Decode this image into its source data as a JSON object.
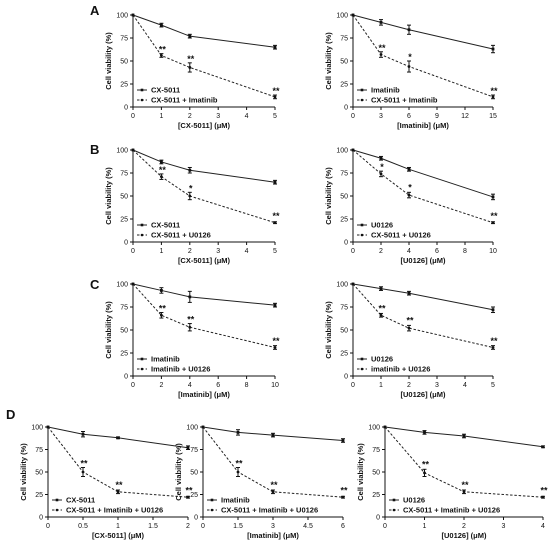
{
  "panels": [
    "A",
    "B",
    "C",
    "D"
  ],
  "chart_data": [
    {
      "type": "line",
      "panel": "A",
      "col": 0,
      "ylabel": "Cell viability (%)",
      "xlabel": "[CX-5011] (μM)",
      "xticks": [
        "0",
        "1",
        "2",
        "3",
        "4",
        "5"
      ],
      "yticks": [
        "0",
        "25",
        "50",
        "75",
        "100"
      ],
      "xlim": [
        0,
        5
      ],
      "ylim": [
        0,
        100
      ],
      "series": [
        {
          "name": "CX-5011",
          "style": "solid",
          "x": [
            0,
            1,
            2,
            5
          ],
          "y": [
            100,
            89,
            77,
            65
          ],
          "err": [
            0,
            2,
            2,
            2
          ]
        },
        {
          "name": "CX-5011 + Imatinib",
          "style": "dashed",
          "x": [
            0,
            1,
            2,
            5
          ],
          "y": [
            100,
            56,
            43,
            11
          ],
          "err": [
            0,
            2,
            5,
            2
          ]
        }
      ],
      "annotations": [
        {
          "x": 1,
          "y": 59,
          "text": "**"
        },
        {
          "x": 2,
          "y": 49,
          "text": "**"
        },
        {
          "x": 5,
          "y": 14,
          "text": "**"
        }
      ]
    },
    {
      "type": "line",
      "panel": "A",
      "col": 1,
      "ylabel": "Cell viability (%)",
      "xlabel": "[Imatinib] (μM)",
      "xticks": [
        "0",
        "3",
        "6",
        "9",
        "12",
        "15"
      ],
      "yticks": [
        "0",
        "25",
        "50",
        "75",
        "100"
      ],
      "xlim": [
        0,
        15
      ],
      "ylim": [
        0,
        100
      ],
      "series": [
        {
          "name": "Imatinib",
          "style": "solid",
          "x": [
            0,
            3,
            6,
            15
          ],
          "y": [
            100,
            92,
            84,
            63
          ],
          "err": [
            0,
            3,
            5,
            4
          ]
        },
        {
          "name": "CX-5011 + Imatinib",
          "style": "dashed",
          "x": [
            0,
            3,
            6,
            15
          ],
          "y": [
            100,
            57,
            44,
            11
          ],
          "err": [
            0,
            3,
            6,
            2
          ]
        }
      ],
      "annotations": [
        {
          "x": 3,
          "y": 61,
          "text": "**"
        },
        {
          "x": 6,
          "y": 51,
          "text": "*"
        },
        {
          "x": 15,
          "y": 14,
          "text": "**"
        }
      ]
    },
    {
      "type": "line",
      "panel": "B",
      "col": 0,
      "ylabel": "Cell viability (%)",
      "xlabel": "[CX-5011] (μM)",
      "xticks": [
        "0",
        "1",
        "2",
        "3",
        "4",
        "5"
      ],
      "yticks": [
        "0",
        "25",
        "50",
        "75",
        "100"
      ],
      "xlim": [
        0,
        5
      ],
      "ylim": [
        0,
        100
      ],
      "series": [
        {
          "name": "CX-5011",
          "style": "solid",
          "x": [
            0,
            1,
            2,
            5
          ],
          "y": [
            100,
            87,
            78,
            65
          ],
          "err": [
            0,
            2,
            3,
            2
          ]
        },
        {
          "name": "CX-5011 + U0126",
          "style": "dashed",
          "x": [
            0,
            1,
            2,
            5
          ],
          "y": [
            100,
            71,
            50,
            21
          ],
          "err": [
            0,
            3,
            4,
            1
          ]
        }
      ],
      "annotations": [
        {
          "x": 1,
          "y": 75,
          "text": "**"
        },
        {
          "x": 2,
          "y": 55,
          "text": "*"
        },
        {
          "x": 5,
          "y": 25,
          "text": "**"
        }
      ]
    },
    {
      "type": "line",
      "panel": "B",
      "col": 1,
      "ylabel": "Cell viability (%)",
      "xlabel": "[U0126] (μM)",
      "xticks": [
        "0",
        "2",
        "4",
        "6",
        "8",
        "10"
      ],
      "yticks": [
        "0",
        "25",
        "50",
        "75",
        "100"
      ],
      "xlim": [
        0,
        10
      ],
      "ylim": [
        0,
        100
      ],
      "series": [
        {
          "name": "U0126",
          "style": "solid",
          "x": [
            0,
            2,
            4,
            10
          ],
          "y": [
            100,
            91,
            79,
            49
          ],
          "err": [
            0,
            2,
            2,
            3
          ]
        },
        {
          "name": "CX-5011 + U0126",
          "style": "dashed",
          "x": [
            0,
            2,
            4,
            10
          ],
          "y": [
            100,
            74,
            51,
            21
          ],
          "err": [
            0,
            3,
            3,
            1
          ]
        }
      ],
      "annotations": [
        {
          "x": 2,
          "y": 78,
          "text": "*"
        },
        {
          "x": 4,
          "y": 56,
          "text": "*"
        },
        {
          "x": 10,
          "y": 25,
          "text": "**"
        }
      ]
    },
    {
      "type": "line",
      "panel": "C",
      "col": 0,
      "ylabel": "Cell viability (%)",
      "xlabel": "[Imatinib] (μM)",
      "xticks": [
        "0",
        "2",
        "4",
        "6",
        "8",
        "10"
      ],
      "yticks": [
        "0",
        "25",
        "50",
        "75",
        "100"
      ],
      "xlim": [
        0,
        10
      ],
      "ylim": [
        0,
        100
      ],
      "series": [
        {
          "name": "Imatinib",
          "style": "solid",
          "x": [
            0,
            2,
            4,
            10
          ],
          "y": [
            100,
            93,
            86,
            77
          ],
          "err": [
            0,
            3,
            6,
            2
          ]
        },
        {
          "name": "Imatinib + U0126",
          "style": "dashed",
          "x": [
            0,
            2,
            4,
            10
          ],
          "y": [
            100,
            66,
            53,
            31
          ],
          "err": [
            0,
            3,
            4,
            2
          ]
        }
      ],
      "annotations": [
        {
          "x": 2,
          "y": 70,
          "text": "**"
        },
        {
          "x": 4,
          "y": 58,
          "text": "**"
        },
        {
          "x": 10,
          "y": 35,
          "text": "**"
        }
      ]
    },
    {
      "type": "line",
      "panel": "C",
      "col": 1,
      "ylabel": "Cell viability (%)",
      "xlabel": "[U0126] (μM)",
      "xticks": [
        "0",
        "1",
        "2",
        "3",
        "4",
        "5"
      ],
      "yticks": [
        "0",
        "25",
        "50",
        "75",
        "100"
      ],
      "xlim": [
        0,
        5
      ],
      "ylim": [
        0,
        100
      ],
      "series": [
        {
          "name": "U0126",
          "style": "solid",
          "x": [
            0,
            1,
            2,
            5
          ],
          "y": [
            100,
            95,
            90,
            72
          ],
          "err": [
            0,
            2,
            2,
            3
          ]
        },
        {
          "name": "imatinib + U0126",
          "style": "dashed",
          "x": [
            0,
            1,
            2,
            5
          ],
          "y": [
            100,
            66,
            52,
            31
          ],
          "err": [
            0,
            2,
            3,
            2
          ]
        }
      ],
      "annotations": [
        {
          "x": 1,
          "y": 70,
          "text": "**"
        },
        {
          "x": 2,
          "y": 57,
          "text": "**"
        },
        {
          "x": 5,
          "y": 35,
          "text": "**"
        }
      ]
    },
    {
      "type": "line",
      "panel": "D",
      "col": 0,
      "ylabel": "Cell viability (%)",
      "xlabel": "[CX-5011] (μM)",
      "xticks": [
        "0",
        "0.5",
        "1",
        "1.5",
        "2"
      ],
      "yticks": [
        "0",
        "25",
        "50",
        "75",
        "100"
      ],
      "xlim": [
        0,
        2
      ],
      "ylim": [
        0,
        100
      ],
      "series": [
        {
          "name": "CX-5011",
          "style": "solid",
          "x": [
            0,
            0.5,
            1,
            2
          ],
          "y": [
            100,
            92,
            88,
            77
          ],
          "err": [
            0,
            3,
            1,
            2
          ]
        },
        {
          "name": "CX-5011 + Imatinib + U0126",
          "style": "dashed",
          "x": [
            0,
            0.5,
            1,
            2
          ],
          "y": [
            100,
            50,
            28,
            22
          ],
          "err": [
            0,
            5,
            2,
            1
          ]
        }
      ],
      "annotations": [
        {
          "x": 0.5,
          "y": 56,
          "text": "**"
        },
        {
          "x": 1,
          "y": 32,
          "text": "**"
        },
        {
          "x": 2,
          "y": 26,
          "text": "**"
        }
      ]
    },
    {
      "type": "line",
      "panel": "D",
      "col": 1,
      "ylabel": "Cell viability (%)",
      "xlabel": "[Imatinib] (μM)",
      "xticks": [
        "0",
        "1.5",
        "3",
        "4.5",
        "6"
      ],
      "yticks": [
        "0",
        "25",
        "50",
        "75",
        "100"
      ],
      "xlim": [
        0,
        6
      ],
      "ylim": [
        0,
        100
      ],
      "series": [
        {
          "name": "Imatinib",
          "style": "solid",
          "x": [
            0,
            1.5,
            3,
            6
          ],
          "y": [
            100,
            94,
            91,
            85
          ],
          "err": [
            0,
            3,
            2,
            2
          ]
        },
        {
          "name": "CX-5011 + Imatinib + U0126",
          "style": "dashed",
          "x": [
            0,
            1.5,
            3,
            6
          ],
          "y": [
            100,
            50,
            28,
            22
          ],
          "err": [
            0,
            5,
            2,
            1
          ]
        }
      ],
      "annotations": [
        {
          "x": 1.5,
          "y": 56,
          "text": "**"
        },
        {
          "x": 3,
          "y": 32,
          "text": "**"
        },
        {
          "x": 6,
          "y": 26,
          "text": "**"
        }
      ]
    },
    {
      "type": "line",
      "panel": "D",
      "col": 2,
      "ylabel": "Cell viability (%)",
      "xlabel": "[U0126] (μM)",
      "xticks": [
        "0",
        "1",
        "2",
        "3",
        "4"
      ],
      "yticks": [
        "0",
        "25",
        "50",
        "75",
        "100"
      ],
      "xlim": [
        0,
        4
      ],
      "ylim": [
        0,
        100
      ],
      "series": [
        {
          "name": "U0126",
          "style": "solid",
          "x": [
            0,
            1,
            2,
            4
          ],
          "y": [
            100,
            94,
            90,
            78
          ],
          "err": [
            0,
            2,
            2,
            1
          ]
        },
        {
          "name": "CX-5011 + Imatinib + U0126",
          "style": "dashed",
          "x": [
            0,
            1,
            2,
            4
          ],
          "y": [
            100,
            49,
            28,
            22
          ],
          "err": [
            0,
            4,
            2,
            1
          ]
        }
      ],
      "annotations": [
        {
          "x": 1,
          "y": 55,
          "text": "**"
        },
        {
          "x": 2,
          "y": 32,
          "text": "**"
        },
        {
          "x": 4,
          "y": 26,
          "text": "**"
        }
      ]
    }
  ]
}
